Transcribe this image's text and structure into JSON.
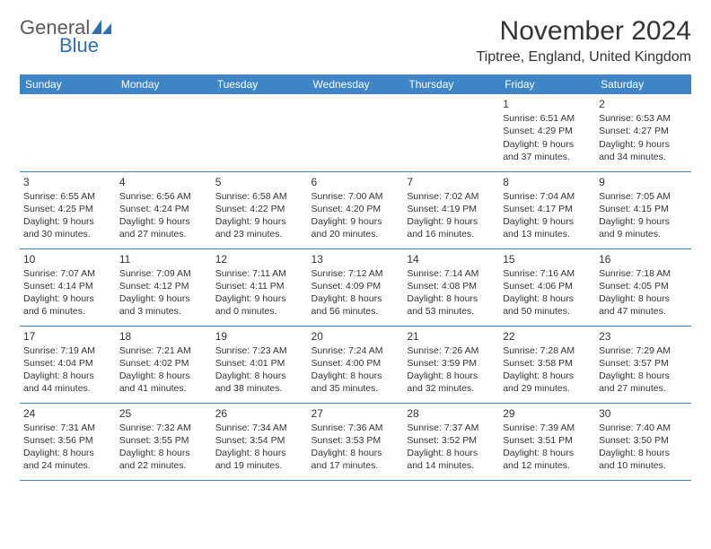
{
  "logo": {
    "text1": "General",
    "text2": "Blue",
    "icon_color": "#2f6fb0"
  },
  "title": "November 2024",
  "location": "Tiptree, England, United Kingdom",
  "colors": {
    "header_bg": "#3d85c6",
    "header_text": "#ffffff",
    "border": "#3d85c6",
    "text": "#333333",
    "logo_gray": "#5a5a5a",
    "logo_blue": "#2f6fb0"
  },
  "weekdays": [
    "Sunday",
    "Monday",
    "Tuesday",
    "Wednesday",
    "Thursday",
    "Friday",
    "Saturday"
  ],
  "weeks": [
    [
      {
        "day": "",
        "sunrise": "",
        "sunset": "",
        "daylight": ""
      },
      {
        "day": "",
        "sunrise": "",
        "sunset": "",
        "daylight": ""
      },
      {
        "day": "",
        "sunrise": "",
        "sunset": "",
        "daylight": ""
      },
      {
        "day": "",
        "sunrise": "",
        "sunset": "",
        "daylight": ""
      },
      {
        "day": "",
        "sunrise": "",
        "sunset": "",
        "daylight": ""
      },
      {
        "day": "1",
        "sunrise": "Sunrise: 6:51 AM",
        "sunset": "Sunset: 4:29 PM",
        "daylight": "Daylight: 9 hours and 37 minutes."
      },
      {
        "day": "2",
        "sunrise": "Sunrise: 6:53 AM",
        "sunset": "Sunset: 4:27 PM",
        "daylight": "Daylight: 9 hours and 34 minutes."
      }
    ],
    [
      {
        "day": "3",
        "sunrise": "Sunrise: 6:55 AM",
        "sunset": "Sunset: 4:25 PM",
        "daylight": "Daylight: 9 hours and 30 minutes."
      },
      {
        "day": "4",
        "sunrise": "Sunrise: 6:56 AM",
        "sunset": "Sunset: 4:24 PM",
        "daylight": "Daylight: 9 hours and 27 minutes."
      },
      {
        "day": "5",
        "sunrise": "Sunrise: 6:58 AM",
        "sunset": "Sunset: 4:22 PM",
        "daylight": "Daylight: 9 hours and 23 minutes."
      },
      {
        "day": "6",
        "sunrise": "Sunrise: 7:00 AM",
        "sunset": "Sunset: 4:20 PM",
        "daylight": "Daylight: 9 hours and 20 minutes."
      },
      {
        "day": "7",
        "sunrise": "Sunrise: 7:02 AM",
        "sunset": "Sunset: 4:19 PM",
        "daylight": "Daylight: 9 hours and 16 minutes."
      },
      {
        "day": "8",
        "sunrise": "Sunrise: 7:04 AM",
        "sunset": "Sunset: 4:17 PM",
        "daylight": "Daylight: 9 hours and 13 minutes."
      },
      {
        "day": "9",
        "sunrise": "Sunrise: 7:05 AM",
        "sunset": "Sunset: 4:15 PM",
        "daylight": "Daylight: 9 hours and 9 minutes."
      }
    ],
    [
      {
        "day": "10",
        "sunrise": "Sunrise: 7:07 AM",
        "sunset": "Sunset: 4:14 PM",
        "daylight": "Daylight: 9 hours and 6 minutes."
      },
      {
        "day": "11",
        "sunrise": "Sunrise: 7:09 AM",
        "sunset": "Sunset: 4:12 PM",
        "daylight": "Daylight: 9 hours and 3 minutes."
      },
      {
        "day": "12",
        "sunrise": "Sunrise: 7:11 AM",
        "sunset": "Sunset: 4:11 PM",
        "daylight": "Daylight: 9 hours and 0 minutes."
      },
      {
        "day": "13",
        "sunrise": "Sunrise: 7:12 AM",
        "sunset": "Sunset: 4:09 PM",
        "daylight": "Daylight: 8 hours and 56 minutes."
      },
      {
        "day": "14",
        "sunrise": "Sunrise: 7:14 AM",
        "sunset": "Sunset: 4:08 PM",
        "daylight": "Daylight: 8 hours and 53 minutes."
      },
      {
        "day": "15",
        "sunrise": "Sunrise: 7:16 AM",
        "sunset": "Sunset: 4:06 PM",
        "daylight": "Daylight: 8 hours and 50 minutes."
      },
      {
        "day": "16",
        "sunrise": "Sunrise: 7:18 AM",
        "sunset": "Sunset: 4:05 PM",
        "daylight": "Daylight: 8 hours and 47 minutes."
      }
    ],
    [
      {
        "day": "17",
        "sunrise": "Sunrise: 7:19 AM",
        "sunset": "Sunset: 4:04 PM",
        "daylight": "Daylight: 8 hours and 44 minutes."
      },
      {
        "day": "18",
        "sunrise": "Sunrise: 7:21 AM",
        "sunset": "Sunset: 4:02 PM",
        "daylight": "Daylight: 8 hours and 41 minutes."
      },
      {
        "day": "19",
        "sunrise": "Sunrise: 7:23 AM",
        "sunset": "Sunset: 4:01 PM",
        "daylight": "Daylight: 8 hours and 38 minutes."
      },
      {
        "day": "20",
        "sunrise": "Sunrise: 7:24 AM",
        "sunset": "Sunset: 4:00 PM",
        "daylight": "Daylight: 8 hours and 35 minutes."
      },
      {
        "day": "21",
        "sunrise": "Sunrise: 7:26 AM",
        "sunset": "Sunset: 3:59 PM",
        "daylight": "Daylight: 8 hours and 32 minutes."
      },
      {
        "day": "22",
        "sunrise": "Sunrise: 7:28 AM",
        "sunset": "Sunset: 3:58 PM",
        "daylight": "Daylight: 8 hours and 29 minutes."
      },
      {
        "day": "23",
        "sunrise": "Sunrise: 7:29 AM",
        "sunset": "Sunset: 3:57 PM",
        "daylight": "Daylight: 8 hours and 27 minutes."
      }
    ],
    [
      {
        "day": "24",
        "sunrise": "Sunrise: 7:31 AM",
        "sunset": "Sunset: 3:56 PM",
        "daylight": "Daylight: 8 hours and 24 minutes."
      },
      {
        "day": "25",
        "sunrise": "Sunrise: 7:32 AM",
        "sunset": "Sunset: 3:55 PM",
        "daylight": "Daylight: 8 hours and 22 minutes."
      },
      {
        "day": "26",
        "sunrise": "Sunrise: 7:34 AM",
        "sunset": "Sunset: 3:54 PM",
        "daylight": "Daylight: 8 hours and 19 minutes."
      },
      {
        "day": "27",
        "sunrise": "Sunrise: 7:36 AM",
        "sunset": "Sunset: 3:53 PM",
        "daylight": "Daylight: 8 hours and 17 minutes."
      },
      {
        "day": "28",
        "sunrise": "Sunrise: 7:37 AM",
        "sunset": "Sunset: 3:52 PM",
        "daylight": "Daylight: 8 hours and 14 minutes."
      },
      {
        "day": "29",
        "sunrise": "Sunrise: 7:39 AM",
        "sunset": "Sunset: 3:51 PM",
        "daylight": "Daylight: 8 hours and 12 minutes."
      },
      {
        "day": "30",
        "sunrise": "Sunrise: 7:40 AM",
        "sunset": "Sunset: 3:50 PM",
        "daylight": "Daylight: 8 hours and 10 minutes."
      }
    ]
  ]
}
